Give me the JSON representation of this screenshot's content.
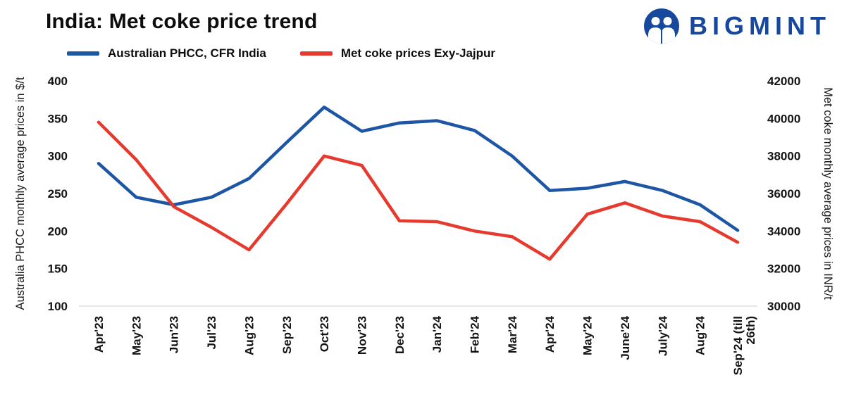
{
  "header": {
    "title": "India: Met coke price trend",
    "brand": "BIGMINT",
    "brand_color": "#17489e"
  },
  "legend": [
    {
      "label": "Australian PHCC, CFR India",
      "color": "#1d56a5"
    },
    {
      "label": "Met coke prices Exy-Jajpur",
      "color": "#e63a2e"
    }
  ],
  "chart_data": {
    "type": "line",
    "title": "India: Met coke price trend",
    "grid": false,
    "legend_position": "top",
    "categories": [
      "Apr'23",
      "May'23",
      "Jun'23",
      "Jul'23",
      "Aug'23",
      "Sep'23",
      "Oct'23",
      "Nov'23",
      "Dec'23",
      "Jan'24",
      "Feb'24",
      "Mar'24",
      "Apr'24",
      "May'24",
      "June'24",
      "July'24",
      "Aug'24",
      "Sep'24 (till 26th)"
    ],
    "left_axis": {
      "label": "Australia PHCC monthly average prices in $/t",
      "min": 100,
      "max": 400,
      "step": 50,
      "ticks": [
        100,
        150,
        200,
        250,
        300,
        350,
        400
      ]
    },
    "right_axis": {
      "label": "Met coke monthly average prices in INR/t",
      "min": 30000,
      "max": 42000,
      "step": 2000,
      "ticks": [
        30000,
        32000,
        34000,
        36000,
        38000,
        40000,
        42000
      ]
    },
    "series": [
      {
        "name": "Australian PHCC, CFR India",
        "axis": "left",
        "color": "#1d56a5",
        "unit": "$/t",
        "values": [
          290,
          245,
          235,
          245,
          270,
          318,
          365,
          333,
          344,
          347,
          334,
          300,
          254,
          257,
          266,
          254,
          235,
          201
        ]
      },
      {
        "name": "Met coke prices Exy-Jajpur",
        "axis": "right",
        "color": "#e63a2e",
        "unit": "INR/t",
        "values": [
          39800,
          37800,
          35300,
          34200,
          33000,
          35450,
          38000,
          37500,
          34550,
          34500,
          34000,
          33700,
          32500,
          34900,
          35500,
          34800,
          34500,
          33400
        ]
      }
    ]
  }
}
